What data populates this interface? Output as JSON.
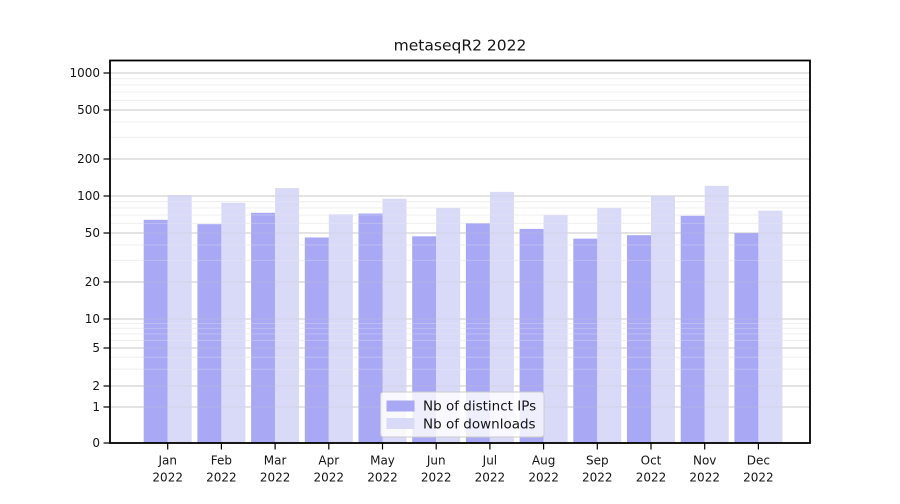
{
  "chart_data": {
    "type": "bar",
    "title": "metaseqR2 2022",
    "categories": [
      "Jan",
      "Feb",
      "Mar",
      "Apr",
      "May",
      "Jun",
      "Jul",
      "Aug",
      "Sep",
      "Oct",
      "Nov",
      "Dec"
    ],
    "year_label": "2022",
    "series": [
      {
        "name": "Nb of distinct IPs",
        "color": "#a8a8f5",
        "values": [
          64,
          59,
          73,
          46,
          72,
          47,
          60,
          54,
          45,
          48,
          69,
          50
        ]
      },
      {
        "name": "Nb of downloads",
        "color": "#d9d9f8",
        "values": [
          102,
          88,
          116,
          71,
          95,
          80,
          108,
          70,
          80,
          100,
          121,
          76
        ]
      }
    ],
    "y_axis": {
      "scale": "log",
      "ticks": [
        1000,
        500,
        200,
        100,
        50,
        20,
        10,
        5,
        2,
        1,
        0
      ],
      "minor_ticks": [
        900,
        800,
        700,
        600,
        400,
        300,
        90,
        80,
        70,
        60,
        40,
        30,
        9,
        8,
        7,
        6,
        4,
        3
      ]
    },
    "x_axis": {
      "label_line2": "2022"
    },
    "legend": {
      "position": "bottom-center"
    },
    "grid": true,
    "colors": {
      "major_grid": "#cbcbcb",
      "minor_grid": "#efefef",
      "spine": "#000000"
    }
  }
}
